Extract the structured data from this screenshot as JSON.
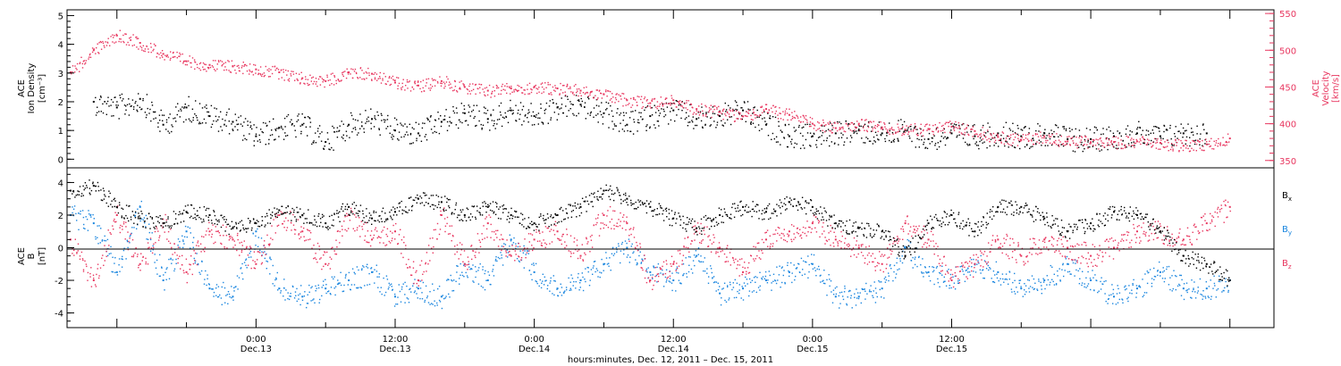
{
  "colors": {
    "axis": "#000000",
    "black_series": "#000000",
    "pink_series": "#e8365f",
    "blue_series": "#1a86df"
  },
  "chart_data": [
    {
      "type": "scatter",
      "panel": "top",
      "ylabel_lines": [
        "ACE",
        "Ion Density",
        "[cm⁻³]"
      ],
      "y2label_lines": [
        "ACE",
        "Velocity",
        "[km/s]"
      ],
      "ylim": [
        -0.3,
        5.2
      ],
      "y2lim": [
        340,
        555
      ],
      "yticks": [
        "0",
        "1",
        "2",
        "3",
        "4",
        "5"
      ],
      "y2ticks": [
        "350",
        "400",
        "450",
        "500",
        "550"
      ],
      "xlim_hours": [
        -16.3,
        87.8
      ],
      "series": [
        {
          "id": "density",
          "color_key": "black_series",
          "axis": "left",
          "x_hours": [
            -14,
            -12,
            -10,
            -8,
            -6,
            -4,
            -2,
            0,
            2,
            4,
            6,
            8,
            10,
            12,
            14,
            16,
            18,
            20,
            22,
            24,
            26,
            28,
            30,
            32,
            34,
            36,
            38,
            40,
            42,
            44,
            46,
            48,
            50,
            52,
            54,
            56,
            58,
            60,
            62,
            64,
            66,
            68,
            70,
            72,
            74,
            76,
            78,
            80,
            82
          ],
          "values": [
            2.0,
            1.8,
            2.1,
            1.2,
            1.8,
            1.5,
            1.3,
            0.8,
            1.1,
            1.2,
            0.6,
            1.2,
            1.4,
            1.0,
            0.9,
            1.3,
            1.6,
            1.4,
            1.7,
            1.5,
            1.8,
            1.9,
            1.6,
            1.2,
            1.5,
            1.7,
            1.4,
            1.5,
            1.7,
            1.2,
            0.8,
            0.8,
            0.9,
            1.0,
            0.9,
            1.0,
            0.7,
            0.9,
            0.8,
            0.9,
            0.8,
            0.9,
            0.7,
            0.7,
            0.8,
            0.9,
            0.8,
            0.9,
            0.9
          ]
        },
        {
          "id": "velocity",
          "color_key": "pink_series",
          "axis": "right",
          "x_hours": [
            -16,
            -14,
            -12,
            -10,
            -8,
            -6,
            -4,
            -2,
            0,
            2,
            4,
            6,
            8,
            10,
            12,
            14,
            16,
            18,
            20,
            22,
            24,
            26,
            28,
            30,
            32,
            34,
            36,
            38,
            40,
            42,
            44,
            46,
            48,
            50,
            52,
            54,
            56,
            58,
            60,
            62,
            64,
            66,
            68,
            70,
            72,
            74,
            76,
            78,
            80,
            82,
            84
          ],
          "values": [
            470,
            500,
            520,
            510,
            495,
            485,
            480,
            478,
            474,
            470,
            462,
            458,
            470,
            468,
            456,
            452,
            458,
            450,
            445,
            448,
            450,
            448,
            445,
            440,
            432,
            428,
            432,
            420,
            416,
            410,
            420,
            412,
            400,
            394,
            400,
            395,
            392,
            393,
            396,
            390,
            382,
            378,
            383,
            376,
            375,
            375,
            376,
            374,
            370,
            372,
            380
          ]
        }
      ]
    },
    {
      "type": "scatter",
      "panel": "bottom",
      "ylabel_lines": [
        "ACE",
        "B",
        "[nT]"
      ],
      "ylim": [
        -4.9,
        4.9
      ],
      "yticks": [
        "-4",
        "-2",
        "0",
        "2",
        "4"
      ],
      "xlim_hours": [
        -16.3,
        87.8
      ],
      "legend": {
        "placement": "right",
        "entries": [
          {
            "label": "B",
            "sub": "x",
            "color_key": "black_series"
          },
          {
            "label": "B",
            "sub": "y",
            "color_key": "blue_series"
          },
          {
            "label": "B",
            "sub": "z",
            "color_key": "pink_series"
          }
        ]
      },
      "series": [
        {
          "id": "bx",
          "color_key": "black_series",
          "x_hours": [
            -16,
            -14,
            -12,
            -10,
            -8,
            -6,
            -4,
            -2,
            0,
            2,
            4,
            6,
            8,
            10,
            12,
            14,
            16,
            18,
            20,
            22,
            24,
            26,
            28,
            30,
            32,
            34,
            36,
            38,
            40,
            42,
            44,
            46,
            48,
            50,
            52,
            54,
            56,
            58,
            60,
            62,
            64,
            66,
            68,
            70,
            72,
            74,
            76,
            78,
            80,
            82,
            84
          ],
          "values": [
            3.5,
            3.8,
            2.5,
            1.8,
            1.5,
            2.2,
            2.0,
            1.2,
            1.5,
            2.3,
            2.0,
            1.5,
            2.5,
            1.8,
            2.2,
            3.0,
            2.8,
            2.0,
            2.5,
            2.0,
            1.5,
            2.0,
            2.5,
            3.5,
            3.0,
            2.5,
            1.8,
            1.2,
            2.0,
            2.5,
            2.2,
            2.8,
            2.5,
            1.5,
            1.2,
            1.0,
            -0.5,
            1.5,
            2.0,
            1.0,
            2.5,
            2.5,
            1.8,
            1.0,
            1.5,
            2.2,
            2.0,
            1.0,
            -0.5,
            -1.0,
            -2.0
          ]
        },
        {
          "id": "by",
          "color_key": "blue_series",
          "x_hours": [
            -16,
            -14,
            -12,
            -10,
            -8,
            -6,
            -4,
            -2,
            0,
            2,
            4,
            6,
            8,
            10,
            12,
            14,
            16,
            18,
            20,
            22,
            24,
            26,
            28,
            30,
            32,
            34,
            36,
            38,
            40,
            42,
            44,
            46,
            48,
            50,
            52,
            54,
            56,
            58,
            60,
            62,
            64,
            66,
            68,
            70,
            72,
            74,
            76,
            78,
            80,
            82,
            84
          ],
          "values": [
            2.0,
            1.5,
            -1.5,
            2.5,
            -2.0,
            1.0,
            -2.5,
            -3.0,
            1.0,
            -2.5,
            -3.0,
            -2.5,
            -2.0,
            -1.5,
            -3.0,
            -2.5,
            -3.0,
            -1.0,
            -2.0,
            0.5,
            -1.5,
            -2.5,
            -2.0,
            -1.0,
            0.0,
            -1.5,
            -2.0,
            -0.5,
            -2.8,
            -2.5,
            -2.0,
            -1.5,
            -1.0,
            -3.0,
            -3.0,
            -2.5,
            0.0,
            -1.5,
            -2.0,
            -1.0,
            -1.5,
            -2.5,
            -2.0,
            -1.0,
            -2.0,
            -3.0,
            -2.5,
            -1.5,
            -2.5,
            -2.5,
            -2.0
          ]
        },
        {
          "id": "bz",
          "color_key": "pink_series",
          "x_hours": [
            -16,
            -14,
            -12,
            -10,
            -8,
            -6,
            -4,
            -2,
            0,
            2,
            4,
            6,
            8,
            10,
            12,
            14,
            16,
            18,
            20,
            22,
            24,
            26,
            28,
            30,
            32,
            34,
            36,
            38,
            40,
            42,
            44,
            46,
            48,
            50,
            52,
            54,
            56,
            58,
            60,
            62,
            64,
            66,
            68,
            70,
            72,
            74,
            76,
            78,
            80,
            82,
            84
          ],
          "values": [
            0.5,
            -2.0,
            2.0,
            -1.0,
            1.5,
            -1.5,
            1.0,
            0.5,
            -1.0,
            2.0,
            1.0,
            -1.0,
            2.0,
            0.5,
            1.0,
            -2.0,
            2.0,
            -1.0,
            1.5,
            -0.5,
            0.5,
            1.0,
            -0.5,
            2.0,
            1.5,
            -2.0,
            -1.0,
            1.0,
            0.0,
            -1.5,
            0.5,
            1.0,
            1.5,
            0.5,
            0.0,
            -1.0,
            1.5,
            0.5,
            -2.0,
            -1.0,
            0.5,
            -0.5,
            0.5,
            0.0,
            -0.5,
            0.0,
            1.0,
            1.0,
            0.5,
            1.5,
            2.5
          ]
        }
      ]
    }
  ],
  "x_axis": {
    "tick_labels": [
      {
        "hours": 0,
        "time": "0:00",
        "date": "Dec.13"
      },
      {
        "hours": 12,
        "time": "12:00",
        "date": "Dec.13"
      },
      {
        "hours": 24,
        "time": "0:00",
        "date": "Dec.14"
      },
      {
        "hours": 36,
        "time": "12:00",
        "date": "Dec.14"
      },
      {
        "hours": 48,
        "time": "0:00",
        "date": "Dec.15"
      },
      {
        "hours": 60,
        "time": "12:00",
        "date": "Dec.15"
      }
    ],
    "title": "hours:minutes, Dec. 12, 2011 – Dec. 15, 2011"
  }
}
